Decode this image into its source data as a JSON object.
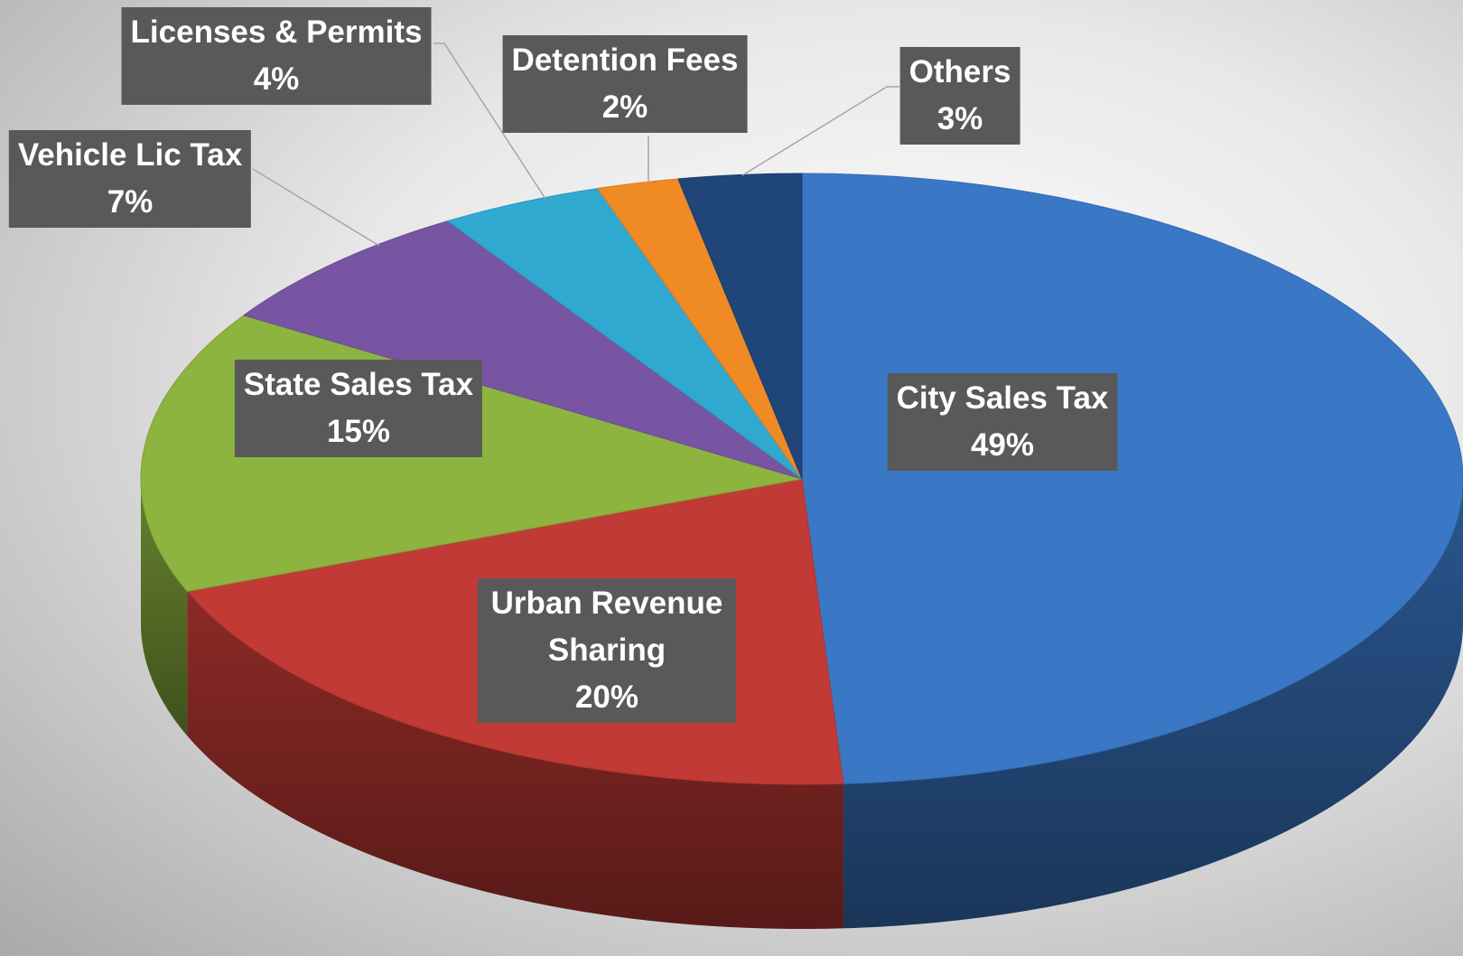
{
  "chart_data": {
    "type": "pie3d",
    "categories": [
      "City Sales Tax",
      "Urban Revenue Sharing",
      "State Sales Tax",
      "Vehicle Lic Tax",
      "Licenses & Permits",
      "Detention Fees",
      "Others"
    ],
    "values": [
      49,
      20,
      15,
      7,
      4,
      2,
      3
    ],
    "value_labels": [
      "49%",
      "20%",
      "15%",
      "7%",
      "4%",
      "2%",
      "3%"
    ],
    "colors": [
      "#3a78c6",
      "#c23a35",
      "#8cb43e",
      "#7755a3",
      "#30a9d1",
      "#f08a24",
      "#1f4579"
    ],
    "start": "top",
    "direction": "clockwise"
  }
}
